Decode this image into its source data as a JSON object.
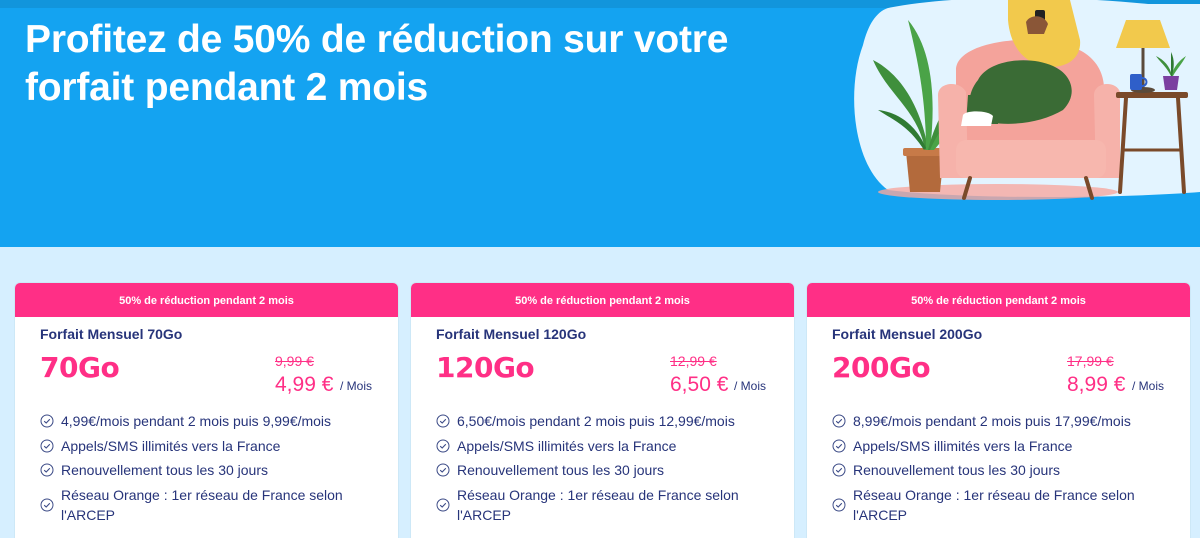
{
  "hero": {
    "title_line1": "Profitez de 50% de réduction sur votre",
    "title_line2": "forfait pendant 2 mois",
    "background_color": "#14a3f1",
    "illustration": "woman-in-armchair-with-phone-plant-and-lamp"
  },
  "plans": [
    {
      "banner": "50% de réduction pendant 2 mois",
      "name": "Forfait Mensuel 70Go",
      "data": "70Go",
      "old_price": "9,99 €",
      "new_price": "4,99 €",
      "period": "/ Mois",
      "features": [
        "4,99€/mois pendant 2 mois puis 9,99€/mois",
        "Appels/SMS illimités vers la France",
        "Renouvellement tous les 30 jours",
        "Réseau Orange : 1er réseau de France selon l'ARCEP"
      ]
    },
    {
      "banner": "50% de réduction pendant 2 mois",
      "name": "Forfait Mensuel 120Go",
      "data": "120Go",
      "old_price": "12,99 €",
      "new_price": "6,50 €",
      "period": "/ Mois",
      "features": [
        "6,50€/mois pendant 2 mois puis 12,99€/mois",
        "Appels/SMS illimités vers la France",
        "Renouvellement tous les 30 jours",
        "Réseau Orange : 1er réseau de France selon l'ARCEP"
      ]
    },
    {
      "banner": "50% de réduction pendant 2 mois",
      "name": "Forfait Mensuel 200Go",
      "data": "200Go",
      "old_price": "17,99 €",
      "new_price": "8,99 €",
      "period": "/ Mois",
      "features": [
        "8,99€/mois pendant 2 mois puis 17,99€/mois",
        "Appels/SMS illimités vers la France",
        "Renouvellement tous les 30 jours",
        "Réseau Orange : 1er réseau de France selon l'ARCEP"
      ]
    }
  ],
  "colors": {
    "accent_pink": "#ff2f86",
    "text_navy": "#27347a",
    "page_background": "#d6efff"
  },
  "icons": {
    "feature": "check-circle-icon"
  }
}
